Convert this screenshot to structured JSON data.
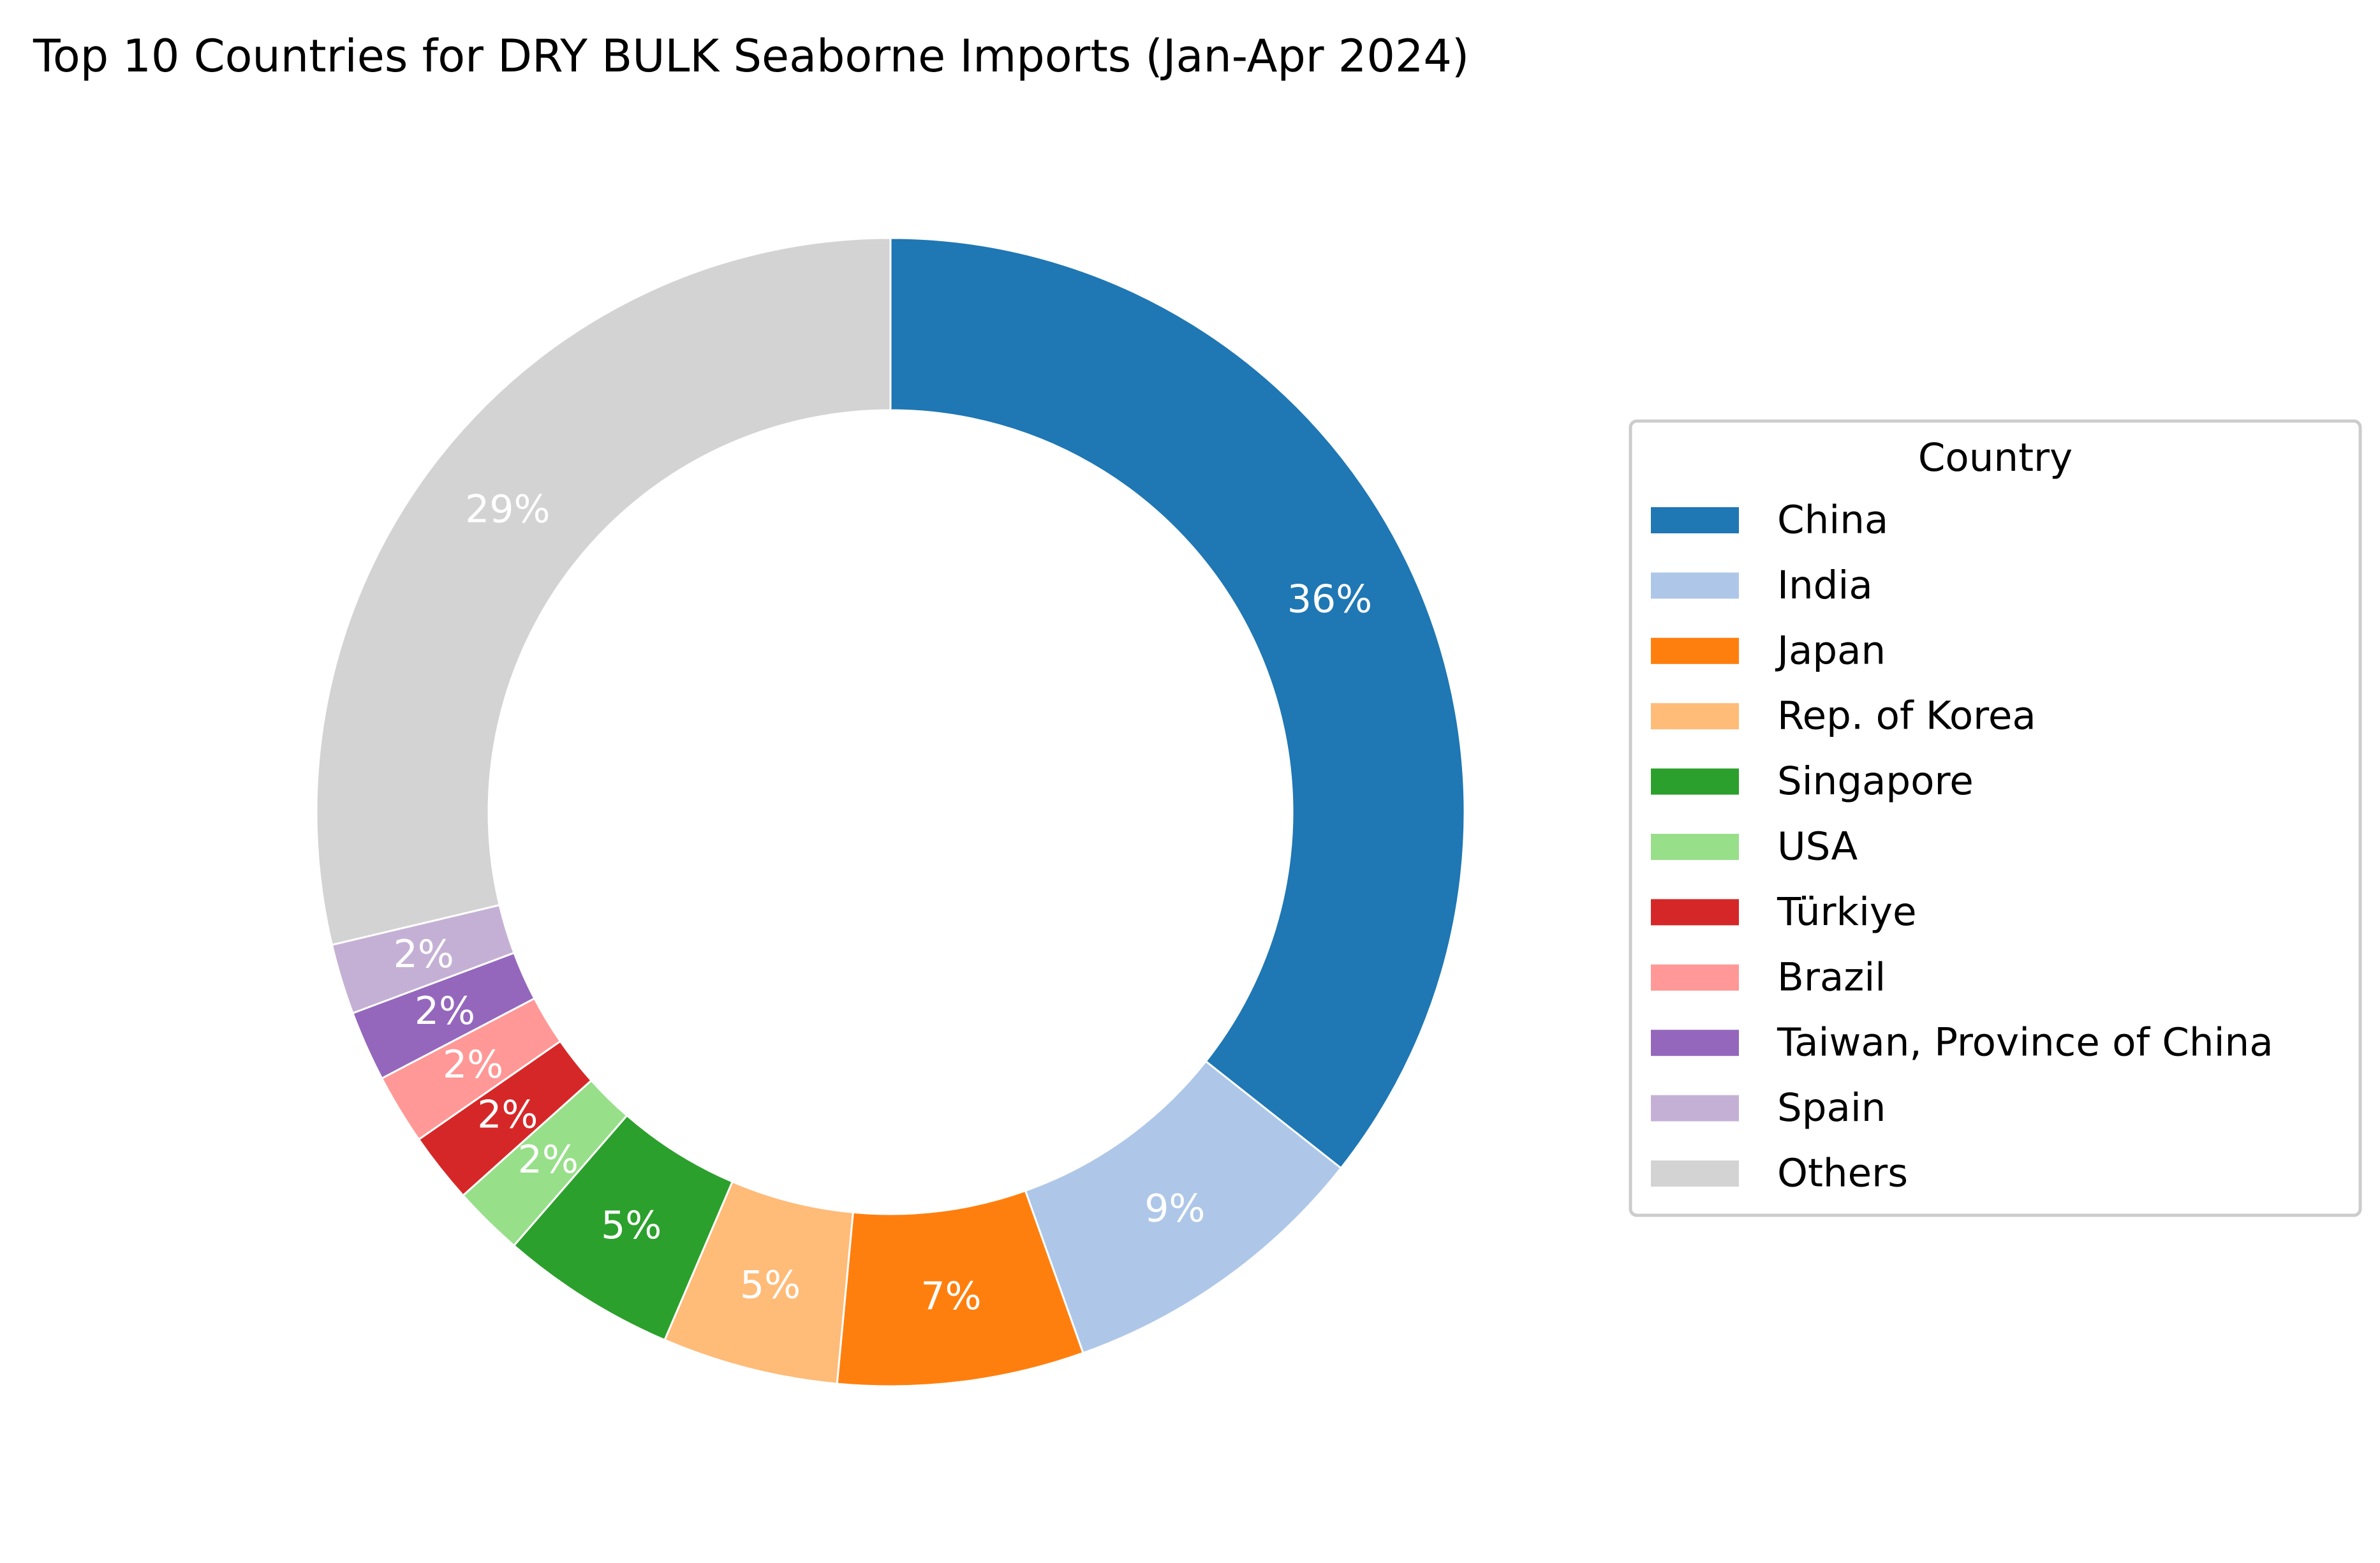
{
  "chart_data": {
    "type": "pie",
    "donut": true,
    "title": "Top 10 Countries for DRY BULK Seaborne Imports (Jan-Apr 2024)",
    "legend_title": "Country",
    "legend_position": "right",
    "start_angle_deg": 90,
    "direction": "clockwise",
    "slices": [
      {
        "label": "China",
        "value": 36,
        "pct_label": "36%",
        "color": "#1f77b4"
      },
      {
        "label": "India",
        "value": 9,
        "pct_label": "9%",
        "color": "#aec7e8"
      },
      {
        "label": "Japan",
        "value": 7,
        "pct_label": "7%",
        "color": "#ff7f0e"
      },
      {
        "label": "Rep. of Korea",
        "value": 5,
        "pct_label": "5%",
        "color": "#ffbb78"
      },
      {
        "label": "Singapore",
        "value": 5,
        "pct_label": "5%",
        "color": "#2ca02c"
      },
      {
        "label": "USA",
        "value": 2,
        "pct_label": "2%",
        "color": "#98df8a"
      },
      {
        "label": "Türkiye",
        "value": 2,
        "pct_label": "2%",
        "color": "#d62728"
      },
      {
        "label": "Brazil",
        "value": 2,
        "pct_label": "2%",
        "color": "#ff9896"
      },
      {
        "label": "Taiwan, Province of China",
        "value": 2,
        "pct_label": "2%",
        "color": "#9467bd"
      },
      {
        "label": "Spain",
        "value": 2,
        "pct_label": "2%",
        "color": "#c5b0d5"
      },
      {
        "label": "Others",
        "value": 29,
        "pct_label": "29%",
        "color": "#d3d3d3"
      }
    ]
  }
}
